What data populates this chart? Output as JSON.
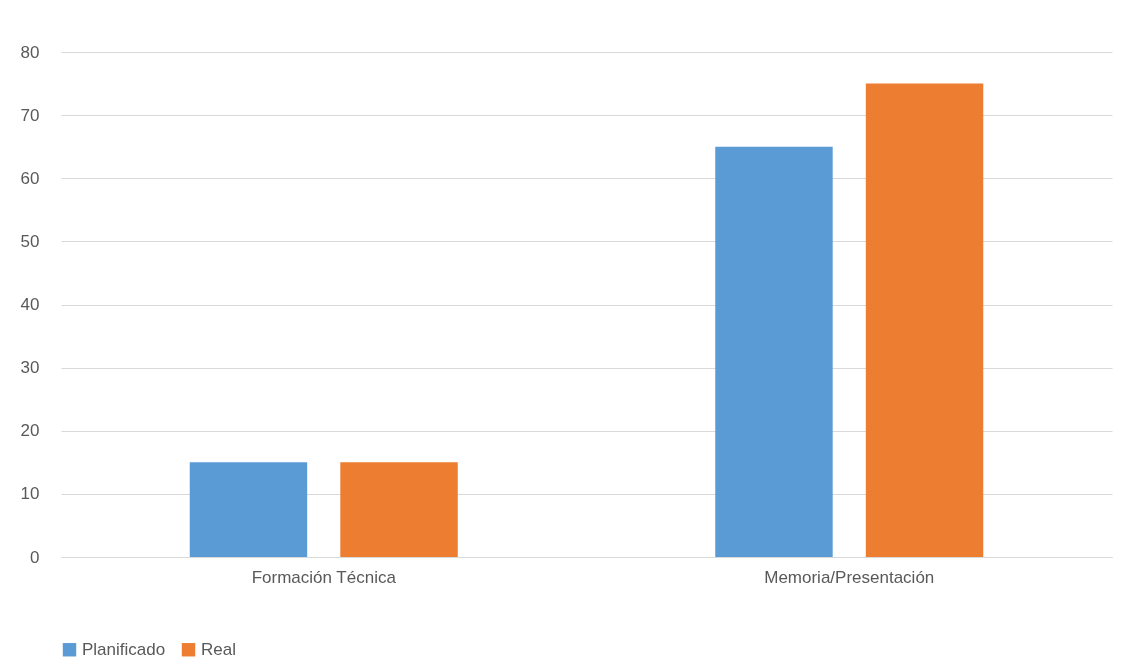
{
  "chart_data": {
    "type": "bar",
    "categories": [
      "Formación Técnica",
      "Memoria/Presentación"
    ],
    "series": [
      {
        "name": "Planificado",
        "color": "#5b9bd5",
        "values": [
          15,
          65
        ]
      },
      {
        "name": "Real",
        "color": "#ed7d31",
        "values": [
          15,
          75
        ]
      }
    ],
    "ylim": [
      0,
      80
    ],
    "yticks": [
      0,
      10,
      20,
      30,
      40,
      50,
      60,
      70,
      80
    ],
    "grid": "y",
    "legend": "bottom"
  }
}
